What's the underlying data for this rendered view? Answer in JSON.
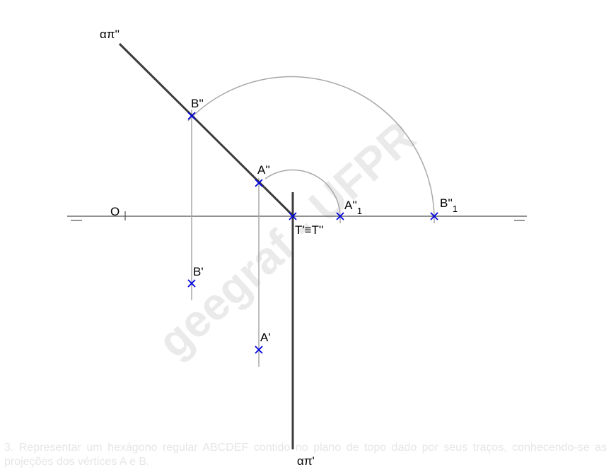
{
  "labels": {
    "trace_vertical": "απ''",
    "trace_horizontal": "απ'",
    "origin": "O",
    "b_front": "B''",
    "a_front": "A''",
    "b_top": "B'",
    "a_top": "A'",
    "t_point": "T'≡T''",
    "a_rot_main": "A''",
    "a_rot_sub": "1",
    "b_rot_main": "B''",
    "b_rot_sub": "1"
  },
  "watermark": "geegraf - UFPR",
  "caption": "3. Representar um hexágono regular ABCDEF contido no plano de topo dado por seus traços, conhecendo-se as projeções dos vértices A e B.",
  "colors": {
    "trace": "#3c3c3c",
    "construction": "#a8a8a8",
    "ground_line": "#505050",
    "point_marker": "#0000e0",
    "text": "#000000"
  }
}
